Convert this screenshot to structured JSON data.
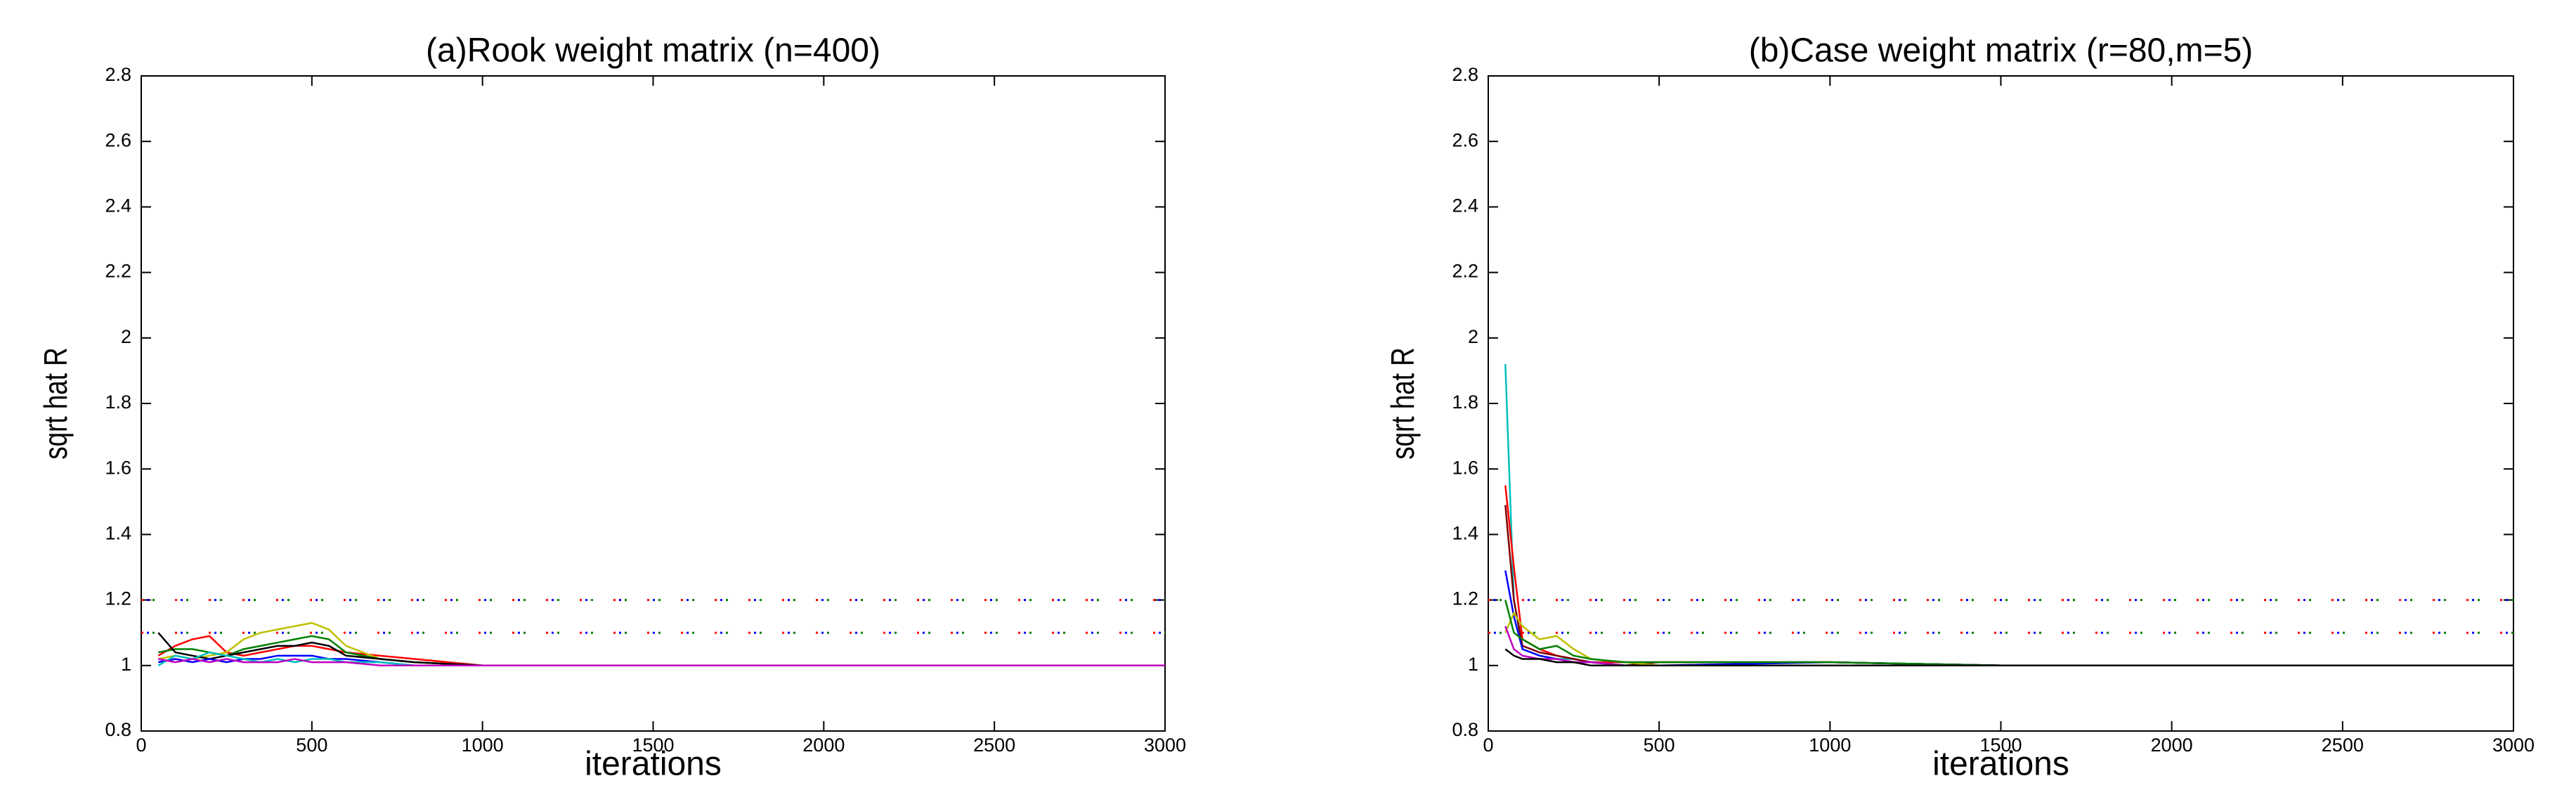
{
  "chart_data": [
    {
      "type": "line",
      "title": "(a)Rook weight matrix (n=400)",
      "xlabel": "iterations",
      "ylabel": "sqrt hat R",
      "xlim": [
        0,
        3000
      ],
      "xticks": [
        0,
        500,
        1000,
        1500,
        2000,
        2500,
        3000
      ],
      "ylim": [
        0.8,
        2.8
      ],
      "yticks": [
        0.8,
        1,
        1.2,
        1.4,
        1.6,
        1.8,
        2,
        2.2,
        2.4,
        2.6,
        2.8
      ],
      "grid": false,
      "reference_lines": [
        1.2,
        1.1
      ],
      "x": [
        50,
        100,
        150,
        200,
        250,
        300,
        350,
        400,
        450,
        500,
        550,
        600,
        700,
        800,
        1000,
        1500,
        2000,
        2500,
        3000
      ],
      "series": [
        {
          "color": "#ff0000",
          "values": [
            1.03,
            1.06,
            1.08,
            1.09,
            1.04,
            1.03,
            1.04,
            1.05,
            1.06,
            1.06,
            1.05,
            1.04,
            1.03,
            1.02,
            1.0,
            1.0,
            1.0,
            1.0,
            1.0
          ]
        },
        {
          "color": "#bfbf00",
          "values": [
            1.02,
            1.03,
            1.02,
            1.03,
            1.04,
            1.08,
            1.1,
            1.11,
            1.12,
            1.13,
            1.11,
            1.06,
            1.02,
            1.01,
            1.0,
            1.0,
            1.0,
            1.0,
            1.0
          ]
        },
        {
          "color": "#008000",
          "values": [
            1.04,
            1.05,
            1.05,
            1.04,
            1.03,
            1.05,
            1.06,
            1.07,
            1.08,
            1.09,
            1.08,
            1.04,
            1.02,
            1.01,
            1.0,
            1.0,
            1.0,
            1.0,
            1.0
          ]
        },
        {
          "color": "#000000",
          "values": [
            1.1,
            1.04,
            1.03,
            1.02,
            1.03,
            1.04,
            1.05,
            1.06,
            1.06,
            1.07,
            1.06,
            1.03,
            1.02,
            1.01,
            1.0,
            1.0,
            1.0,
            1.0,
            1.0
          ]
        },
        {
          "color": "#0000ff",
          "values": [
            1.01,
            1.02,
            1.01,
            1.02,
            1.01,
            1.02,
            1.02,
            1.03,
            1.03,
            1.03,
            1.02,
            1.02,
            1.01,
            1.0,
            1.0,
            1.0,
            1.0,
            1.0,
            1.0
          ]
        },
        {
          "color": "#00bfbf",
          "values": [
            1.0,
            1.03,
            1.02,
            1.04,
            1.03,
            1.02,
            1.01,
            1.02,
            1.01,
            1.02,
            1.02,
            1.01,
            1.01,
            1.0,
            1.0,
            1.0,
            1.0,
            1.0,
            1.0
          ]
        },
        {
          "color": "#bf00bf",
          "values": [
            1.02,
            1.01,
            1.02,
            1.01,
            1.02,
            1.01,
            1.01,
            1.01,
            1.02,
            1.01,
            1.01,
            1.01,
            1.0,
            1.0,
            1.0,
            1.0,
            1.0,
            1.0,
            1.0
          ]
        }
      ]
    },
    {
      "type": "line",
      "title": "(b)Case weight matrix (r=80,m=5)",
      "xlabel": "iterations",
      "ylabel": "sqrt hat R",
      "xlim": [
        0,
        3000
      ],
      "xticks": [
        0,
        500,
        1000,
        1500,
        2000,
        2500,
        3000
      ],
      "ylim": [
        0.8,
        2.8
      ],
      "yticks": [
        0.8,
        1,
        1.2,
        1.4,
        1.6,
        1.8,
        2,
        2.2,
        2.4,
        2.6,
        2.8
      ],
      "grid": false,
      "reference_lines": [
        1.2,
        1.1
      ],
      "x": [
        50,
        75,
        100,
        150,
        200,
        250,
        300,
        400,
        500,
        1000,
        1500,
        2000,
        2500,
        3000
      ],
      "series": [
        {
          "color": "#00bfbf",
          "values": [
            1.92,
            1.2,
            1.05,
            1.03,
            1.02,
            1.02,
            1.01,
            1.01,
            1.01,
            1.01,
            1.0,
            1.0,
            1.0,
            1.0
          ]
        },
        {
          "color": "#ff0000",
          "values": [
            1.55,
            1.3,
            1.08,
            1.05,
            1.03,
            1.02,
            1.01,
            1.01,
            1.01,
            1.01,
            1.0,
            1.0,
            1.0,
            1.0
          ]
        },
        {
          "color": "#800000",
          "values": [
            1.49,
            1.2,
            1.06,
            1.04,
            1.03,
            1.02,
            1.01,
            1.0,
            1.01,
            1.01,
            1.0,
            1.0,
            1.0,
            1.0
          ]
        },
        {
          "color": "#0000ff",
          "values": [
            1.29,
            1.15,
            1.05,
            1.03,
            1.02,
            1.01,
            1.01,
            1.0,
            1.0,
            1.01,
            1.0,
            1.0,
            1.0,
            1.0
          ]
        },
        {
          "color": "#bfbf00",
          "values": [
            1.1,
            1.16,
            1.12,
            1.08,
            1.09,
            1.05,
            1.02,
            1.01,
            1.0,
            1.0,
            1.0,
            1.0,
            1.0,
            1.0
          ]
        },
        {
          "color": "#008000",
          "values": [
            1.2,
            1.1,
            1.08,
            1.05,
            1.06,
            1.03,
            1.02,
            1.01,
            1.01,
            1.01,
            1.0,
            1.0,
            1.0,
            1.0
          ]
        },
        {
          "color": "#bf00bf",
          "values": [
            1.12,
            1.05,
            1.03,
            1.02,
            1.02,
            1.01,
            1.01,
            1.0,
            1.0,
            1.0,
            1.0,
            1.0,
            1.0,
            1.0
          ]
        },
        {
          "color": "#000000",
          "values": [
            1.05,
            1.03,
            1.02,
            1.02,
            1.01,
            1.01,
            1.0,
            1.0,
            1.0,
            1.0,
            1.0,
            1.0,
            1.0,
            1.0
          ]
        }
      ]
    }
  ]
}
